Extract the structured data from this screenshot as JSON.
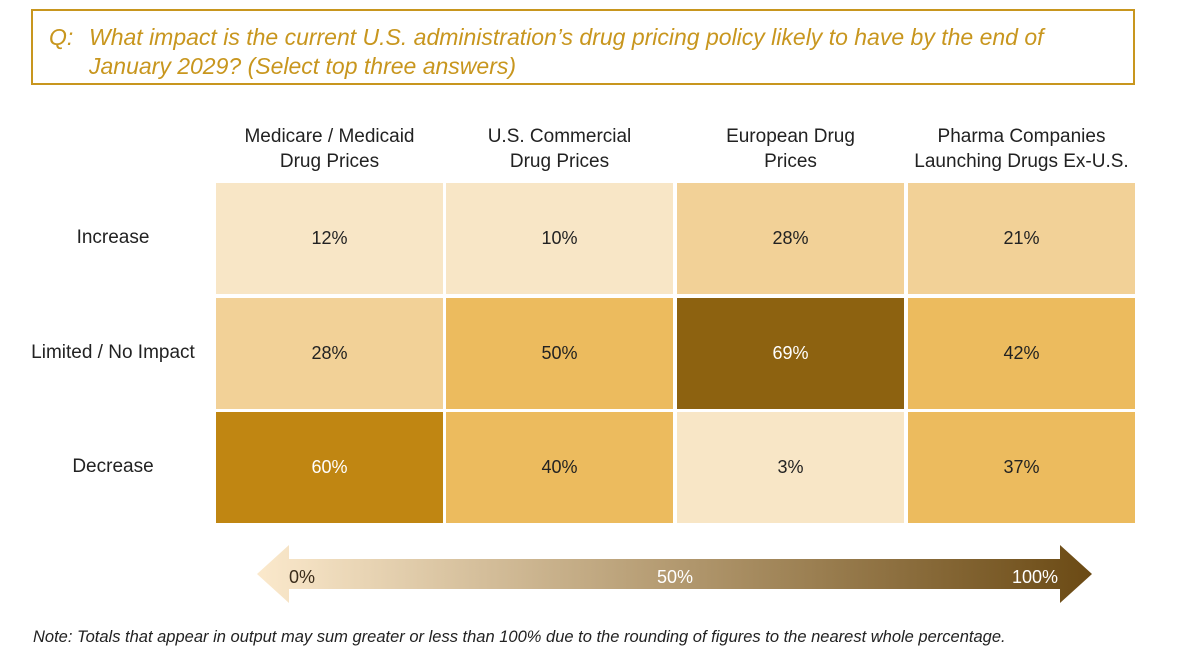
{
  "question": {
    "prefix": "Q:",
    "text": "What impact is the current U.S. administration’s drug pricing policy likely to have by the end of January 2029? (Select top three answers)"
  },
  "chart_data": {
    "type": "heatmap",
    "columns": [
      "Medicare / Medicaid Drug Prices",
      "U.S. Commercial Drug Prices",
      "European Drug Prices",
      "Pharma Companies Launching Drugs Ex-U.S."
    ],
    "column_lines": [
      [
        "Medicare / Medicaid",
        "Drug Prices"
      ],
      [
        "U.S. Commercial",
        "Drug Prices"
      ],
      [
        "European Drug",
        "Prices"
      ],
      [
        "Pharma Companies",
        "Launching Drugs Ex-U.S."
      ]
    ],
    "rows": [
      "Increase",
      "Limited / No Impact",
      "Decrease"
    ],
    "values": [
      [
        12,
        10,
        28,
        21
      ],
      [
        28,
        50,
        69,
        42
      ],
      [
        60,
        40,
        3,
        37
      ]
    ],
    "labels": [
      [
        "12%",
        "10%",
        "28%",
        "21%"
      ],
      [
        "28%",
        "50%",
        "69%",
        "42%"
      ],
      [
        "60%",
        "40%",
        "3%",
        "37%"
      ]
    ],
    "cell_colors": [
      [
        "#f8e6c6",
        "#f8e6c6",
        "#f2d197",
        "#f2d197"
      ],
      [
        "#f2d197",
        "#ecbb5e",
        "#8d6210",
        "#ecbb5e"
      ],
      [
        "#c08612",
        "#ecbb5e",
        "#f8e6c6",
        "#ecbb5e"
      ]
    ],
    "scale": {
      "min_label": "0%",
      "mid_label": "50%",
      "max_label": "100%",
      "colors": [
        "#fbe9cc",
        "#6b4a14"
      ]
    }
  },
  "note": "Note:  Totals that appear in output may sum greater or less than 100% due to the rounding of figures to the nearest whole percentage."
}
